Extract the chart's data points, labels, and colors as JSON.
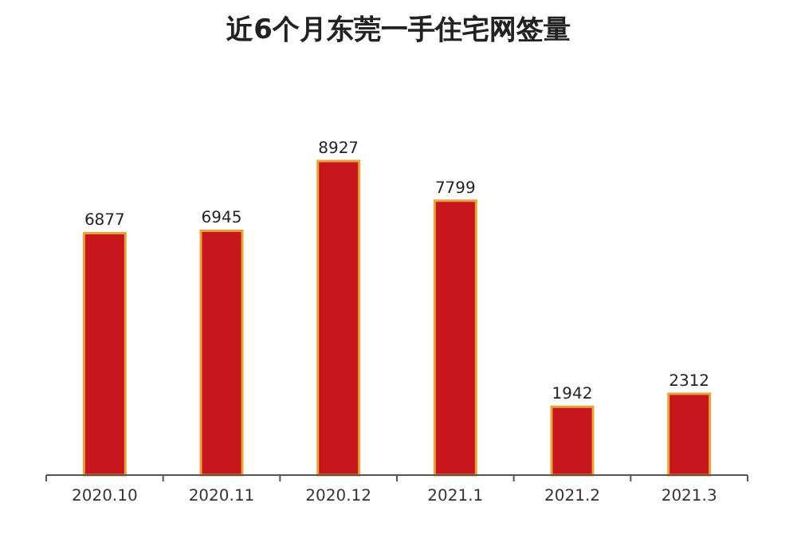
{
  "chart_data": {
    "type": "bar",
    "title": "近6个月东莞一手住宅网签量",
    "categories": [
      "2020.10",
      "2020.11",
      "2020.12",
      "2021.1",
      "2021.2",
      "2021.3"
    ],
    "values": [
      6877,
      6945,
      8927,
      7799,
      1942,
      2312
    ],
    "color": "#c8161d",
    "data_labels": true
  }
}
